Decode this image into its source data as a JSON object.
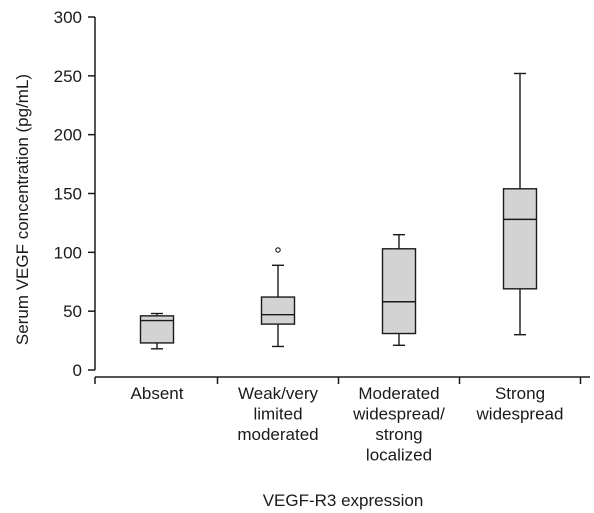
{
  "chart_data": {
    "type": "box",
    "title": "",
    "ylabel": "Serum VEGF concentration (pg/mL)",
    "xlabel": "VEGF-R3 expression",
    "ylim": [
      0,
      300
    ],
    "yticks": [
      0,
      50,
      100,
      150,
      200,
      250,
      300
    ],
    "ytick_labels": [
      "0",
      "50",
      "100",
      "150",
      "200",
      "250",
      "300"
    ],
    "grid": false,
    "categories": [
      [
        "Absent"
      ],
      [
        "Weak/very",
        "limited",
        "moderated"
      ],
      [
        "Moderated",
        "widespread/",
        "strong",
        "localized"
      ],
      [
        "Strong",
        "widespread"
      ]
    ],
    "boxes": [
      {
        "whisker_low": 18,
        "q1": 23,
        "median": 42,
        "q3": 46,
        "whisker_high": 48,
        "outliers": []
      },
      {
        "whisker_low": 20,
        "q1": 39,
        "median": 47,
        "q3": 62,
        "whisker_high": 89,
        "outliers": [
          102
        ]
      },
      {
        "whisker_low": 21,
        "q1": 31,
        "median": 58,
        "q3": 103,
        "whisker_high": 115,
        "outliers": []
      },
      {
        "whisker_low": 30,
        "q1": 69,
        "median": 128,
        "q3": 154,
        "whisker_high": 252,
        "outliers": []
      }
    ],
    "box_fill": "#d3d3d3",
    "line_color": "#1a1a1a"
  }
}
